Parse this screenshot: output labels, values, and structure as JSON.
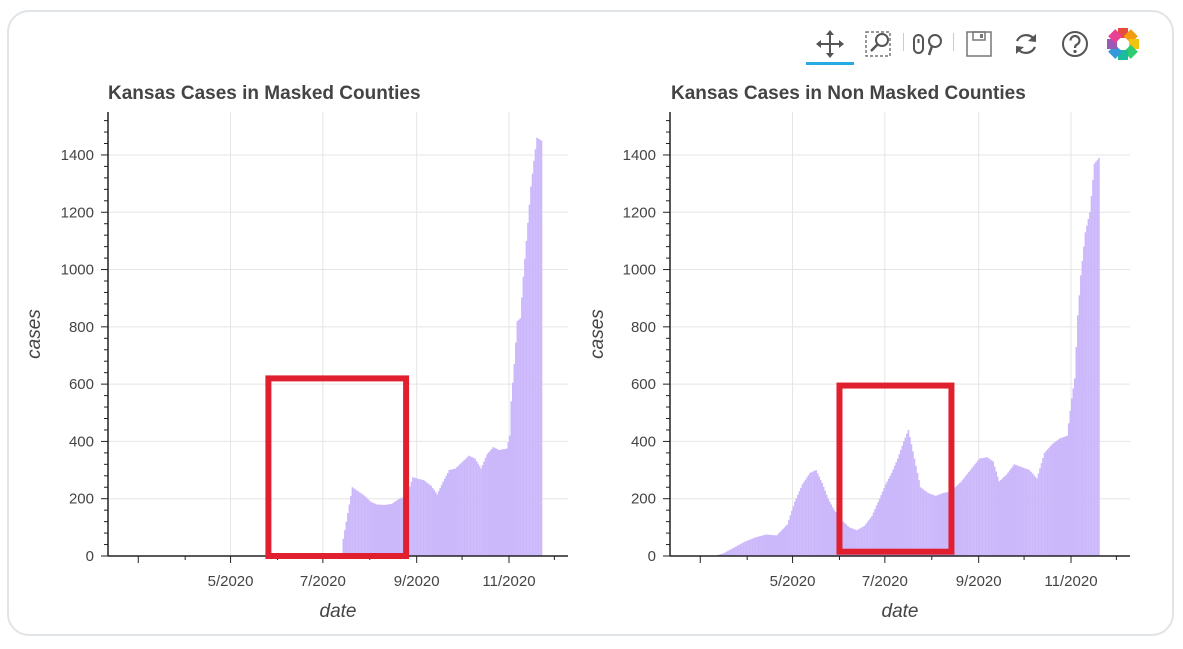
{
  "toolbar": {
    "tools": [
      {
        "name": "pan-tool",
        "icon": "pan-arrows-icon",
        "active": true
      },
      {
        "name": "box-zoom-tool",
        "icon": "box-zoom-icon",
        "active": false
      },
      {
        "name": "wheel-zoom-tool",
        "icon": "wheel-zoom-icon",
        "active": false
      },
      {
        "name": "save-tool",
        "icon": "save-disk-icon",
        "active": false
      },
      {
        "name": "reset-tool",
        "icon": "reset-icon",
        "active": false
      },
      {
        "name": "help-tool",
        "icon": "help-icon",
        "active": false
      },
      {
        "name": "bokeh-logo",
        "icon": "bokeh-logo-icon",
        "active": false
      }
    ],
    "active_color": "#26aae1"
  },
  "chart_data": [
    {
      "type": "bar",
      "title": "Kansas Cases in Masked Counties",
      "xlabel": "date",
      "ylabel": "cases",
      "x_ticks": [
        "5/2020",
        "7/2020",
        "9/2020",
        "11/2020"
      ],
      "y_ticks": [
        0,
        200,
        400,
        600,
        800,
        1000,
        1200,
        1400
      ],
      "ylim": [
        0,
        1550
      ],
      "xlim": [
        "2020-02-10",
        "2020-12-10"
      ],
      "grid": true,
      "bar_color": "#cbb8fb",
      "highlight_color": "#e0202f",
      "highlight_box": {
        "x": [
          "2020-05-26",
          "2020-08-25"
        ],
        "y": [
          0,
          620
        ]
      },
      "points": [
        [
          "2020-07-01",
          0
        ],
        [
          "2020-07-13",
          0
        ],
        [
          "2020-07-14",
          60
        ],
        [
          "2020-07-16",
          120
        ],
        [
          "2020-07-18",
          180
        ],
        [
          "2020-07-20",
          240
        ],
        [
          "2020-07-24",
          225
        ],
        [
          "2020-07-28",
          210
        ],
        [
          "2020-08-01",
          190
        ],
        [
          "2020-08-05",
          180
        ],
        [
          "2020-08-10",
          178
        ],
        [
          "2020-08-15",
          182
        ],
        [
          "2020-08-20",
          200
        ],
        [
          "2020-08-25",
          210
        ],
        [
          "2020-08-29",
          275
        ],
        [
          "2020-09-01",
          270
        ],
        [
          "2020-09-05",
          265
        ],
        [
          "2020-09-10",
          245
        ],
        [
          "2020-09-14",
          215
        ],
        [
          "2020-09-18",
          260
        ],
        [
          "2020-09-22",
          300
        ],
        [
          "2020-09-26",
          305
        ],
        [
          "2020-10-01",
          330
        ],
        [
          "2020-10-05",
          350
        ],
        [
          "2020-10-09",
          340
        ],
        [
          "2020-10-13",
          305
        ],
        [
          "2020-10-17",
          355
        ],
        [
          "2020-10-21",
          380
        ],
        [
          "2020-10-25",
          370
        ],
        [
          "2020-10-30",
          375
        ],
        [
          "2020-11-01",
          420
        ],
        [
          "2020-11-02",
          540
        ],
        [
          "2020-11-04",
          670
        ],
        [
          "2020-11-06",
          820
        ],
        [
          "2020-11-08",
          830
        ],
        [
          "2020-11-10",
          975
        ],
        [
          "2020-11-12",
          1100
        ],
        [
          "2020-11-15",
          1290
        ],
        [
          "2020-11-17",
          1380
        ],
        [
          "2020-11-19",
          1460
        ],
        [
          "2020-11-22",
          1450
        ]
      ]
    },
    {
      "type": "bar",
      "title": "Kansas Cases in Non Masked Counties",
      "xlabel": "date",
      "ylabel": "cases",
      "x_ticks": [
        "5/2020",
        "7/2020",
        "9/2020",
        "11/2020"
      ],
      "y_ticks": [
        0,
        200,
        400,
        600,
        800,
        1000,
        1200,
        1400
      ],
      "ylim": [
        0,
        1550
      ],
      "xlim": [
        "2020-02-10",
        "2020-12-10"
      ],
      "grid": true,
      "bar_color": "#cbb8fb",
      "highlight_color": "#e0202f",
      "highlight_box": {
        "x": [
          "2020-06-01",
          "2020-08-14"
        ],
        "y": [
          15,
          595
        ]
      },
      "points": [
        [
          "2020-03-10",
          0
        ],
        [
          "2020-03-16",
          10
        ],
        [
          "2020-03-23",
          30
        ],
        [
          "2020-03-30",
          50
        ],
        [
          "2020-04-06",
          65
        ],
        [
          "2020-04-13",
          75
        ],
        [
          "2020-04-20",
          72
        ],
        [
          "2020-04-27",
          110
        ],
        [
          "2020-05-02",
          190
        ],
        [
          "2020-05-07",
          250
        ],
        [
          "2020-05-12",
          290
        ],
        [
          "2020-05-16",
          300
        ],
        [
          "2020-05-20",
          255
        ],
        [
          "2020-05-24",
          200
        ],
        [
          "2020-05-28",
          160
        ],
        [
          "2020-06-02",
          125
        ],
        [
          "2020-06-07",
          100
        ],
        [
          "2020-06-12",
          90
        ],
        [
          "2020-06-17",
          105
        ],
        [
          "2020-06-22",
          140
        ],
        [
          "2020-06-27",
          200
        ],
        [
          "2020-07-01",
          250
        ],
        [
          "2020-07-05",
          290
        ],
        [
          "2020-07-09",
          340
        ],
        [
          "2020-07-13",
          400
        ],
        [
          "2020-07-16",
          440
        ],
        [
          "2020-07-20",
          340
        ],
        [
          "2020-07-24",
          240
        ],
        [
          "2020-07-29",
          220
        ],
        [
          "2020-08-03",
          210
        ],
        [
          "2020-08-08",
          220
        ],
        [
          "2020-08-13",
          225
        ],
        [
          "2020-08-20",
          260
        ],
        [
          "2020-08-26",
          300
        ],
        [
          "2020-09-01",
          340
        ],
        [
          "2020-09-06",
          345
        ],
        [
          "2020-09-10",
          330
        ],
        [
          "2020-09-14",
          260
        ],
        [
          "2020-09-19",
          285
        ],
        [
          "2020-09-24",
          320
        ],
        [
          "2020-09-29",
          310
        ],
        [
          "2020-10-04",
          300
        ],
        [
          "2020-10-09",
          270
        ],
        [
          "2020-10-14",
          360
        ],
        [
          "2020-10-19",
          390
        ],
        [
          "2020-10-24",
          410
        ],
        [
          "2020-10-29",
          420
        ],
        [
          "2020-11-01",
          550
        ],
        [
          "2020-11-03",
          620
        ],
        [
          "2020-11-05",
          840
        ],
        [
          "2020-11-07",
          980
        ],
        [
          "2020-11-10",
          1130
        ],
        [
          "2020-11-13",
          1200
        ],
        [
          "2020-11-16",
          1370
        ],
        [
          "2020-11-19",
          1390
        ]
      ]
    }
  ]
}
